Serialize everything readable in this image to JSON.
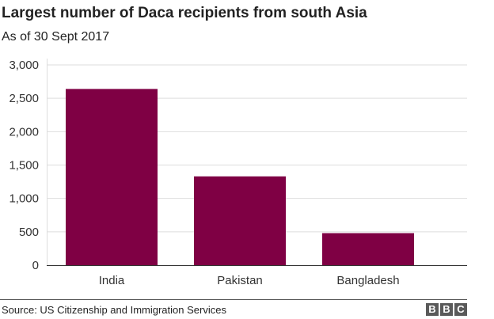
{
  "chart_data": {
    "type": "bar",
    "title": "Largest number of Daca recipients from south Asia",
    "subtitle": "As of 30 Sept 2017",
    "categories": [
      "India",
      "Pakistan",
      "Bangladesh"
    ],
    "values": [
      2640,
      1330,
      480
    ],
    "xlabel": "",
    "ylabel": "",
    "ylim": [
      0,
      3000
    ],
    "yticks": [
      0,
      500,
      1000,
      1500,
      2000,
      2500,
      3000
    ],
    "ytick_labels": [
      "0",
      "500",
      "1,000",
      "1,500",
      "2,000",
      "2,500",
      "3,000"
    ],
    "grid": true,
    "legend": "none"
  },
  "colors": {
    "bar": "#7f0044",
    "grid": "#dddddd",
    "axis": "#333333"
  },
  "footer": {
    "source": "Source: US Citizenship and Immigration Services",
    "logo_letters": [
      "B",
      "B",
      "C"
    ]
  }
}
